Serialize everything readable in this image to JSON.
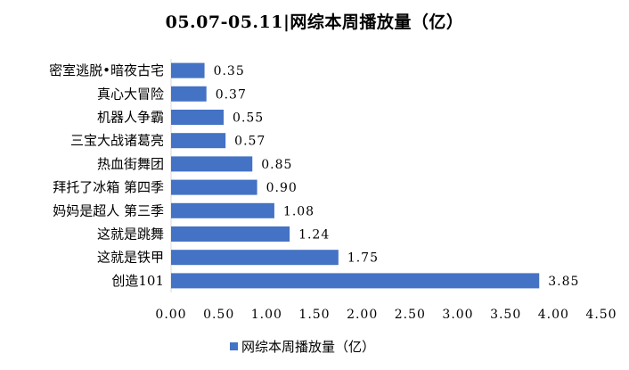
{
  "chart_data": {
    "type": "bar",
    "orientation": "horizontal",
    "title": "05.07-05.11|网综本周播放量（亿）",
    "categories": [
      "密室逃脱·暗夜古宅",
      "真心大冒险",
      "机器人争霸",
      "三宝大战诸葛亮",
      "热血街舞团",
      "拜托了冰箱 第四季",
      "妈妈是超人 第三季",
      "这就是跳舞",
      "这就是铁甲",
      "创造101"
    ],
    "category_labels": [
      "密室逃脱•暗夜古宅",
      "真心大冒险",
      "机器人争霸",
      "三宝大战诸葛亮",
      "热血街舞团",
      "拜托了冰箱 第四季",
      "妈妈是超人 第三季",
      "这就是跳舞",
      "这就是铁甲",
      "创造101"
    ],
    "series": [
      {
        "name": "网综本周播放量（亿）",
        "values": [
          0.35,
          0.37,
          0.55,
          0.57,
          0.85,
          0.9,
          1.08,
          1.24,
          1.75,
          3.85
        ],
        "value_labels": [
          "0.35",
          "0.37",
          "0.55",
          "0.57",
          "0.85",
          "0.90",
          "1.08",
          "1.24",
          "1.75",
          "3.85"
        ]
      }
    ],
    "xlim": [
      0,
      4.5
    ],
    "x_ticks": [
      "0.00",
      "0.50",
      "1.00",
      "1.50",
      "2.00",
      "2.50",
      "3.00",
      "3.50",
      "4.00",
      "4.50"
    ],
    "grid": false,
    "legend": "bottom",
    "bar_color": "#4472C4"
  }
}
